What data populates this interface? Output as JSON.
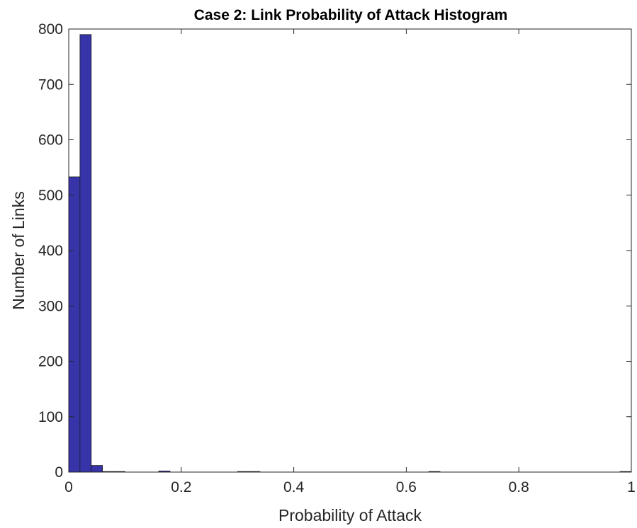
{
  "chart_data": {
    "type": "bar",
    "title": "Case 2: Link Probability of Attack Histogram",
    "xlabel": "Probability of Attack",
    "ylabel": "Number of Links",
    "xlim": [
      0,
      1
    ],
    "ylim": [
      0,
      800
    ],
    "grid": false,
    "bin_width": 0.02,
    "bins": [
      {
        "x0": 0.0,
        "x1": 0.02,
        "count": 533
      },
      {
        "x0": 0.02,
        "x1": 0.04,
        "count": 790
      },
      {
        "x0": 0.04,
        "x1": 0.06,
        "count": 12
      },
      {
        "x0": 0.06,
        "x1": 0.08,
        "count": 1
      },
      {
        "x0": 0.08,
        "x1": 0.1,
        "count": 1
      },
      {
        "x0": 0.16,
        "x1": 0.18,
        "count": 2
      },
      {
        "x0": 0.3,
        "x1": 0.32,
        "count": 1
      },
      {
        "x0": 0.32,
        "x1": 0.34,
        "count": 1
      },
      {
        "x0": 0.64,
        "x1": 0.66,
        "count": 1
      },
      {
        "x0": 0.98,
        "x1": 1.0,
        "count": 1
      }
    ],
    "xticks": [
      0,
      0.2,
      0.4,
      0.6,
      0.8,
      1
    ],
    "xtick_labels": [
      "0",
      "0.2",
      "0.4",
      "0.6",
      "0.8",
      "1"
    ],
    "yticks": [
      0,
      100,
      200,
      300,
      400,
      500,
      600,
      700,
      800
    ],
    "ytick_labels": [
      "0",
      "100",
      "200",
      "300",
      "400",
      "500",
      "600",
      "700",
      "800"
    ],
    "bar_color": "#3634a8"
  }
}
